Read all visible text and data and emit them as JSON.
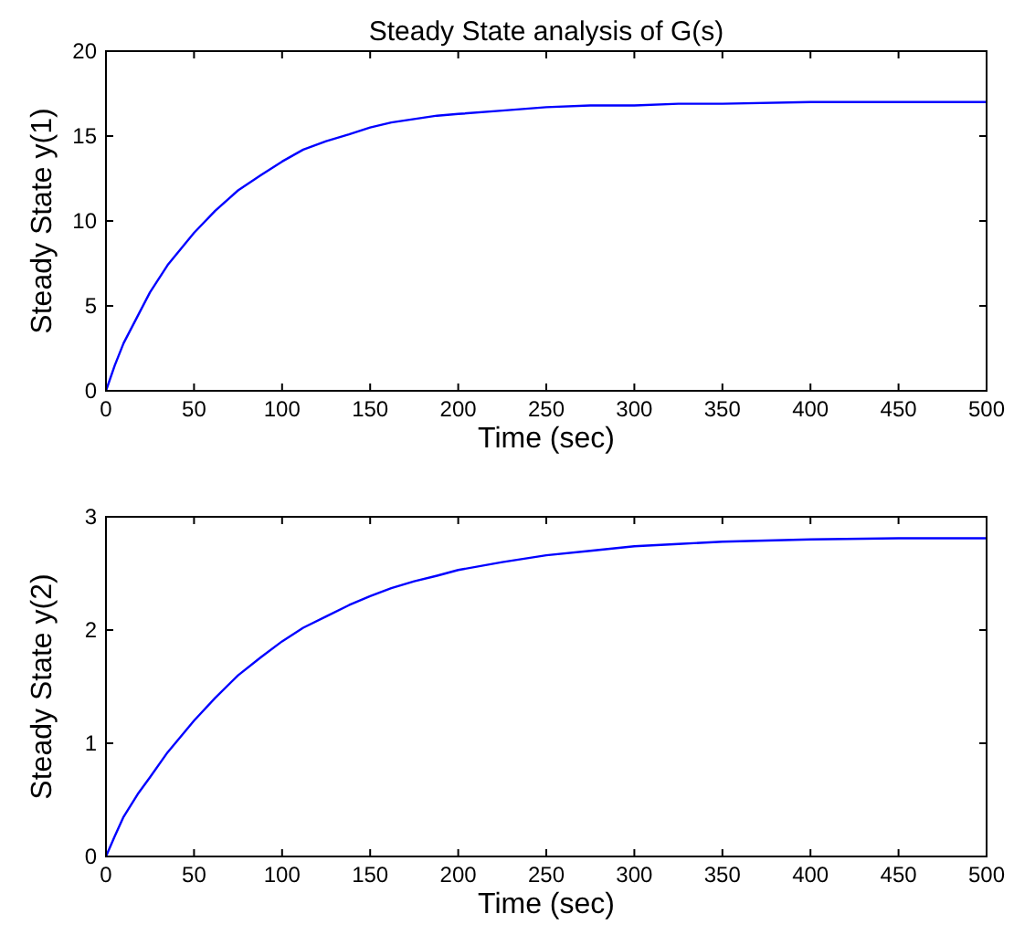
{
  "chart_data": [
    {
      "type": "line",
      "title": "Steady State analysis of G(s)",
      "xlabel": "Time (sec)",
      "ylabel": "Steady State y(1)",
      "x": [
        0,
        5,
        10,
        18,
        25,
        35,
        50,
        62,
        75,
        88,
        100,
        112,
        125,
        138,
        150,
        162,
        175,
        188,
        200,
        225,
        250,
        275,
        300,
        325,
        350,
        400,
        450,
        500
      ],
      "series": [
        {
          "color": "#0000ff",
          "values": [
            0,
            1.5,
            2.8,
            4.4,
            5.8,
            7.4,
            9.3,
            10.6,
            11.8,
            12.7,
            13.5,
            14.2,
            14.7,
            15.1,
            15.5,
            15.8,
            16.0,
            16.2,
            16.3,
            16.5,
            16.7,
            16.8,
            16.8,
            16.9,
            16.9,
            17,
            17,
            17
          ]
        }
      ],
      "xlim": [
        0,
        500
      ],
      "ylim": [
        0,
        20
      ],
      "xticks": [
        0,
        50,
        100,
        150,
        200,
        250,
        300,
        350,
        400,
        450,
        500
      ],
      "yticks": [
        0,
        5,
        10,
        15,
        20
      ],
      "grid": false,
      "marker": "none",
      "line_style": "solid"
    },
    {
      "type": "line",
      "xlabel": "Time (sec)",
      "ylabel": "Steady State y(2)",
      "x": [
        0,
        5,
        10,
        18,
        25,
        35,
        50,
        62,
        75,
        88,
        100,
        112,
        125,
        138,
        150,
        162,
        175,
        188,
        200,
        225,
        250,
        275,
        300,
        325,
        350,
        400,
        450,
        500
      ],
      "series": [
        {
          "color": "#0000ff",
          "values": [
            0,
            0.18,
            0.35,
            0.55,
            0.7,
            0.92,
            1.2,
            1.4,
            1.6,
            1.76,
            1.9,
            2.02,
            2.12,
            2.22,
            2.3,
            2.37,
            2.43,
            2.48,
            2.53,
            2.6,
            2.66,
            2.7,
            2.74,
            2.76,
            2.78,
            2.8,
            2.81,
            2.81
          ]
        }
      ],
      "xlim": [
        0,
        500
      ],
      "ylim": [
        0,
        3
      ],
      "xticks": [
        0,
        50,
        100,
        150,
        200,
        250,
        300,
        350,
        400,
        450,
        500
      ],
      "yticks": [
        0,
        1,
        2,
        3
      ],
      "grid": false,
      "marker": "none",
      "line_style": "solid"
    }
  ]
}
